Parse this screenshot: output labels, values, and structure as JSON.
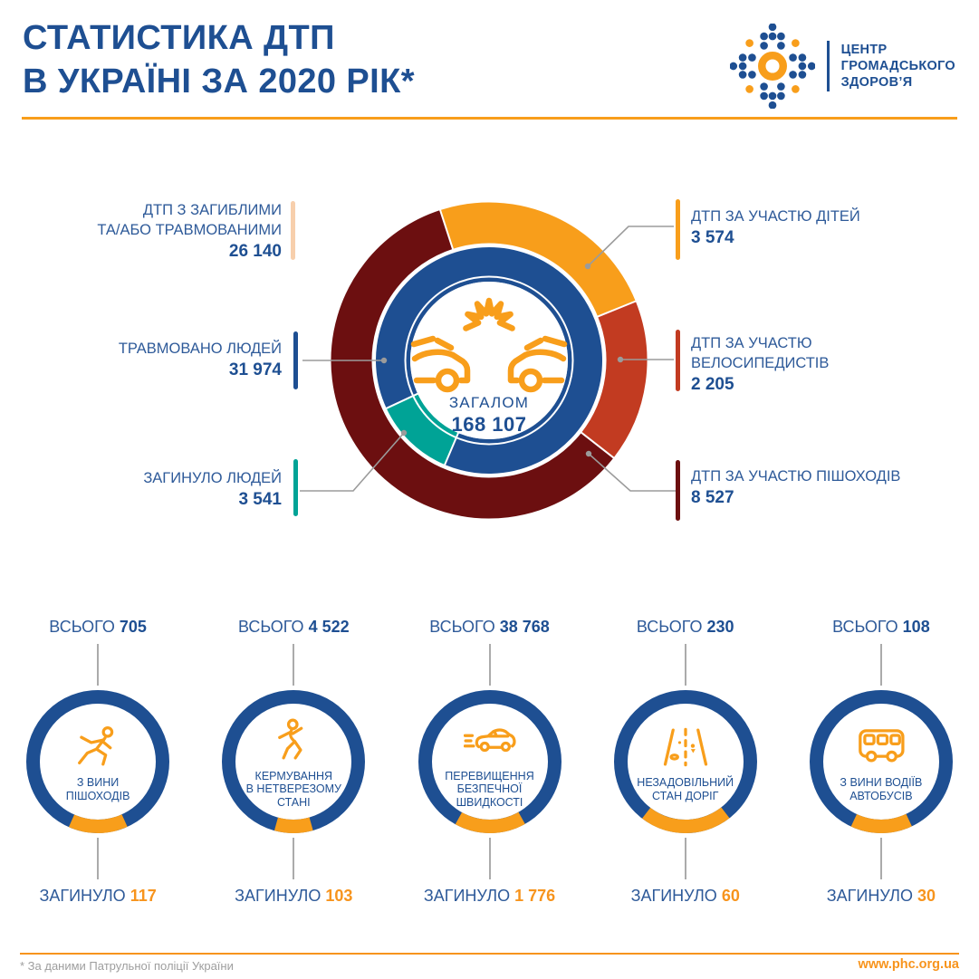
{
  "header": {
    "title_line1": "СТАТИСТИКА ДТП",
    "title_line2": "В УКРАЇНІ ЗА 2020 РІК*",
    "logo_line1": "ЦЕНТР",
    "logo_line2": "ГРОМАДСЬКОГО",
    "logo_line3": "ЗДОРОВ’Я"
  },
  "chart_data": {
    "type": "pie",
    "variant": "double-ring-donut",
    "center_label": "ЗАГАЛОМ",
    "center_value": "168 107",
    "total": 168107,
    "outer_ring": [
      {
        "label": "ДТП ЗА УЧАСТЮ ДІТЕЙ",
        "value": 3574,
        "color": "#F89E1B",
        "start_deg": 342,
        "span_deg": 86
      },
      {
        "label": "ДТП ЗА УЧАСТЮ ВЕЛОСИПЕДИСТІВ",
        "value": 2205,
        "color": "#C23B21",
        "start_deg": 68,
        "span_deg": 60
      },
      {
        "label": "ДТП ЗА УЧАСТЮ ПІШОХОДІВ",
        "value": 8527,
        "color": "#6C0F10",
        "start_deg": 128,
        "span_deg": 214
      }
    ],
    "inner_ring": [
      {
        "label": "ТРАВМОВАНО ЛЮДЕЙ",
        "value": 31974,
        "color": "#1E4F92",
        "start_deg": 245,
        "span_deg": 318
      },
      {
        "label": "ЗАГИНУЛО ЛЮДЕЙ",
        "value": 3541,
        "color": "#00A396",
        "start_deg": 203,
        "span_deg": 42
      }
    ],
    "side_labels": {
      "left": [
        {
          "label": "ДТП З ЗАГИБЛИМИ\nТА/АБО ТРАВМОВАНИМИ",
          "value": "26 140",
          "bar_color": "#F7CFAC"
        },
        {
          "label": "ТРАВМОВАНО ЛЮДЕЙ",
          "value": "31 974",
          "bar_color": "#1E4F92"
        },
        {
          "label": "ЗАГИНУЛО ЛЮДЕЙ",
          "value": "3 541",
          "bar_color": "#00A396"
        }
      ],
      "right": [
        {
          "label": "ДТП ЗА УЧАСТЮ ДІТЕЙ",
          "value": "3 574",
          "bar_color": "#F89E1B"
        },
        {
          "label": "ДТП ЗА УЧАСТЮ\nВЕЛОСИПЕДИСТІВ",
          "value": "2 205",
          "bar_color": "#C23B21"
        },
        {
          "label": "ДТП ЗА УЧАСТЮ ПІШОХОДІВ",
          "value": "8 527",
          "bar_color": "#6C0F10"
        }
      ]
    }
  },
  "causes": [
    {
      "total": "705",
      "label": "З ВИНИ\nПІШОХОДІВ",
      "died": "117",
      "icon": "pedestrian-icon",
      "arc_deg": 48
    },
    {
      "total": "4 522",
      "label": "КЕРМУВАННЯ\nВ НЕТВЕРЕЗОМУ\nСТАНІ",
      "died": "103",
      "icon": "drunk-driving-icon",
      "arc_deg": 31
    },
    {
      "total": "38 768",
      "label": "ПЕРЕВИЩЕННЯ\nБЕЗПЕЧНОЇ\nШВИДКОСТІ",
      "died": "1 776",
      "icon": "speeding-car-icon",
      "arc_deg": 58
    },
    {
      "total": "230",
      "label": "НЕЗАДОВІЛЬНИЙ\nСТАН ДОРІГ",
      "died": "60",
      "icon": "road-condition-icon",
      "arc_deg": 75
    },
    {
      "total": "108",
      "label": "З ВИНИ ВОДІЇВ\nАВТОБУСІВ",
      "died": "30",
      "icon": "bus-icon",
      "arc_deg": 50
    }
  ],
  "strings": {
    "total_prefix": "ВСЬОГО",
    "died_prefix": "ЗАГИНУЛО"
  },
  "footer": {
    "note": "* За даними Патрульної поліції України",
    "url": "www.phc.org.ua"
  },
  "colors": {
    "primary_blue": "#1E4F92",
    "label_blue": "#2E5A99",
    "accent_orange": "#F89E1B",
    "value_orange": "#F7941D",
    "maroon": "#6C0F10",
    "brick_red": "#C23B21",
    "teal": "#00A396",
    "peach": "#F7CFAC",
    "line_gray": "#9B9B9B"
  }
}
